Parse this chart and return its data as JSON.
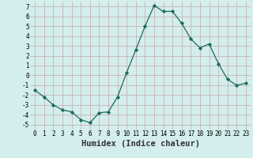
{
  "x": [
    0,
    1,
    2,
    3,
    4,
    5,
    6,
    7,
    8,
    9,
    10,
    11,
    12,
    13,
    14,
    15,
    16,
    17,
    18,
    19,
    20,
    21,
    22,
    23
  ],
  "y": [
    -1.5,
    -2.2,
    -3.0,
    -3.5,
    -3.7,
    -4.5,
    -4.8,
    -3.8,
    -3.7,
    -2.2,
    0.3,
    2.6,
    5.0,
    7.1,
    6.5,
    6.5,
    5.3,
    3.7,
    2.8,
    3.2,
    1.2,
    -0.4,
    -1.0,
    -0.8
  ],
  "line_color": "#1a6b5a",
  "marker": "D",
  "marker_size": 2.2,
  "bg_color": "#d4eded",
  "grid_color": "#c2aaaa",
  "xlabel": "Humidex (Indice chaleur)",
  "xlim": [
    -0.5,
    23.5
  ],
  "ylim": [
    -5.5,
    7.5
  ],
  "yticks": [
    -5,
    -4,
    -3,
    -2,
    -1,
    0,
    1,
    2,
    3,
    4,
    5,
    6,
    7
  ],
  "xticks": [
    0,
    1,
    2,
    3,
    4,
    5,
    6,
    7,
    8,
    9,
    10,
    11,
    12,
    13,
    14,
    15,
    16,
    17,
    18,
    19,
    20,
    21,
    22,
    23
  ],
  "tick_fontsize": 5.5,
  "label_fontsize": 7.5
}
